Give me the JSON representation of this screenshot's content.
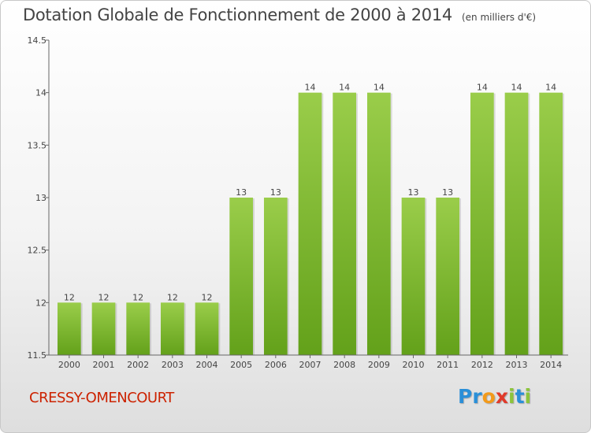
{
  "header": {
    "title": "Dotation Globale de Fonctionnement de 2000 à 2014",
    "subtitle": "(en milliers d'€)"
  },
  "footer": {
    "place": "CRESSY-OMENCOURT",
    "logo_letters": [
      {
        "ch": "P",
        "color": "#2a8fd8"
      },
      {
        "ch": "r",
        "color": "#2a8fd8"
      },
      {
        "ch": "o",
        "color": "#f39a1a"
      },
      {
        "ch": "x",
        "color": "#e03a2a"
      },
      {
        "ch": "i",
        "color": "#8cc43c"
      },
      {
        "ch": "t",
        "color": "#2a8fd8"
      },
      {
        "ch": "i",
        "color": "#8cc43c"
      }
    ]
  },
  "chart_data": {
    "type": "bar",
    "categories": [
      "2000",
      "2001",
      "2002",
      "2003",
      "2004",
      "2005",
      "2006",
      "2007",
      "2008",
      "2009",
      "2010",
      "2011",
      "2012",
      "2013",
      "2014"
    ],
    "values": [
      12,
      12,
      12,
      12,
      12,
      13,
      13,
      14,
      14,
      14,
      13,
      13,
      14,
      14,
      14
    ],
    "data_labels": [
      "12",
      "12",
      "12",
      "12",
      "12",
      "13",
      "13",
      "14",
      "14",
      "14",
      "13",
      "13",
      "14",
      "14",
      "14"
    ],
    "ylim": [
      11.5,
      14.5
    ],
    "yticks": [
      11.5,
      12,
      12.5,
      13,
      13.5,
      14,
      14.5
    ],
    "ytick_labels": [
      "11.5",
      "12",
      "12.5",
      "13",
      "13.5",
      "14",
      "14.5"
    ],
    "grid": false,
    "bar_color_top": "#9acd4a",
    "bar_color_bottom": "#63a11a"
  }
}
